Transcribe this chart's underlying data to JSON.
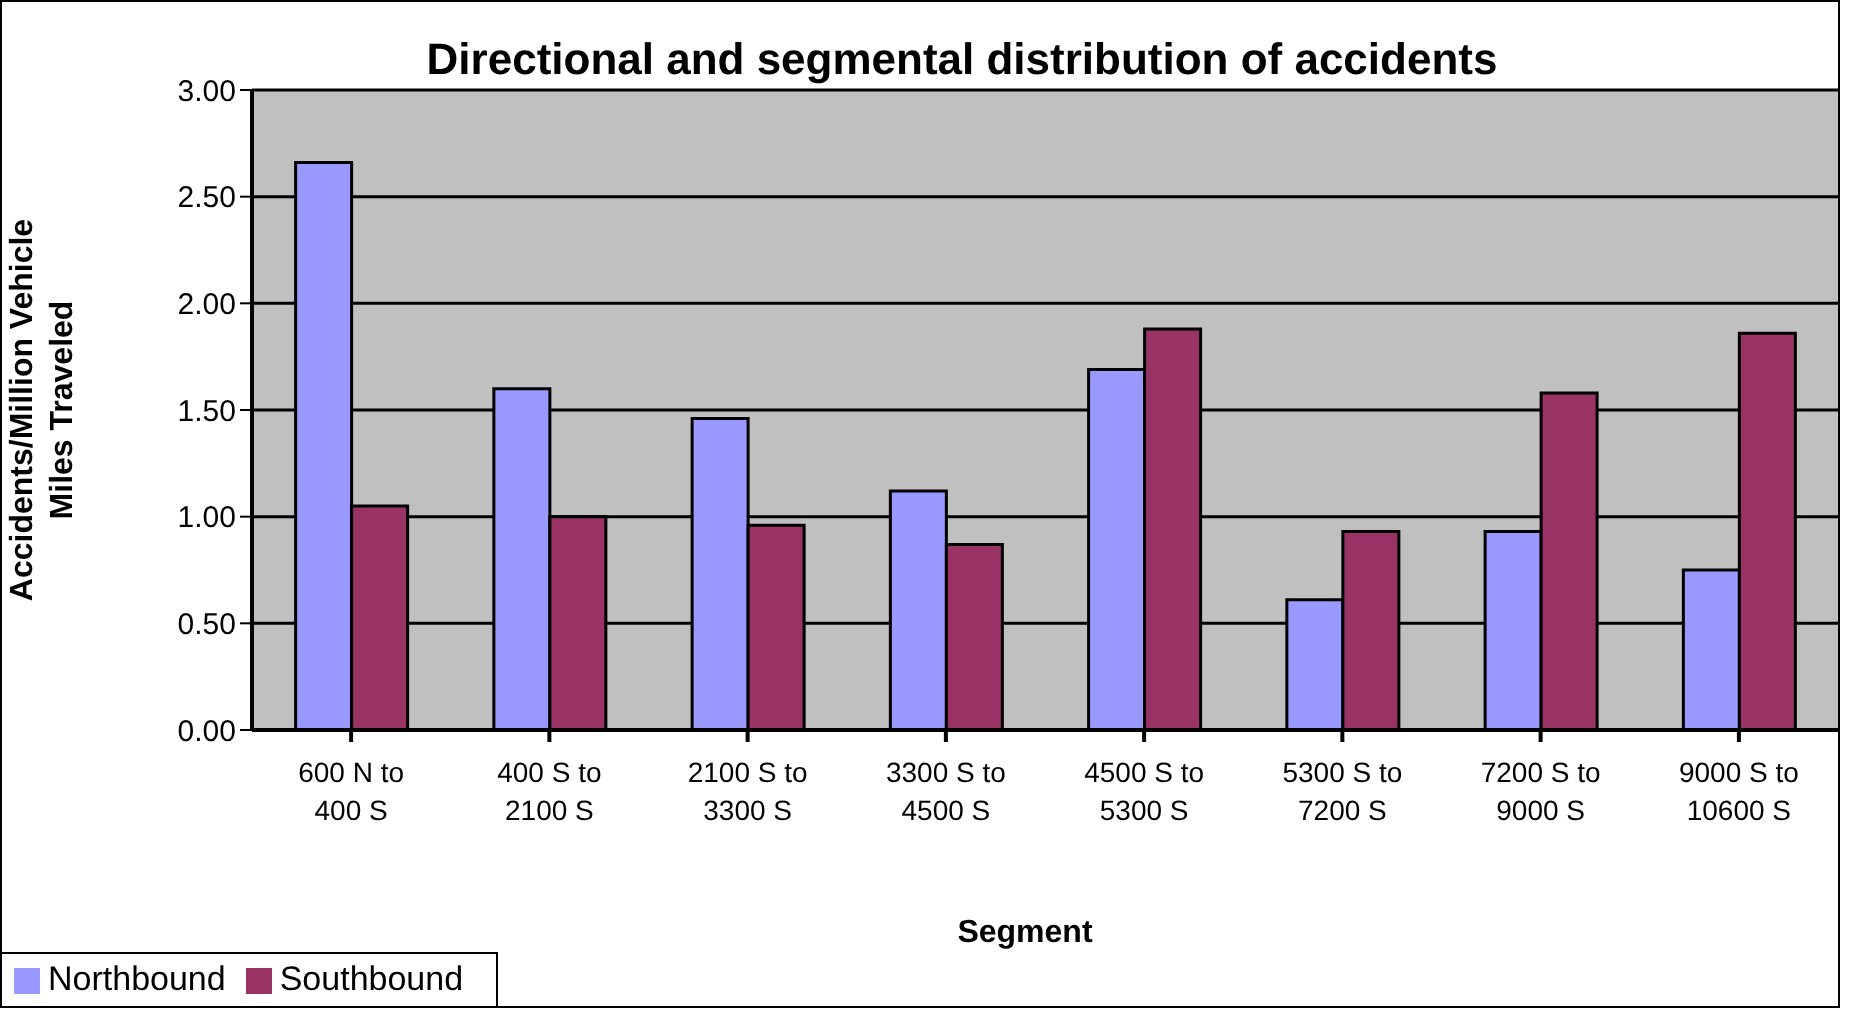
{
  "chart_data": {
    "type": "bar",
    "title": "Directional and segmental distribution of accidents",
    "xlabel": "Segment",
    "ylabel": "Accidents/Million Vehicle Miles Traveled",
    "categories": [
      "600 N to 400 S",
      "400 S to 2100 S",
      "2100 S to 3300 S",
      "3300 S to 4500 S",
      "4500 S to 5300 S",
      "5300 S to 7200 S",
      "7200 S to 9000 S",
      "9000 S to 10600 S"
    ],
    "series": [
      {
        "name": "Northbound",
        "color": "#9999ff",
        "values": [
          2.66,
          1.6,
          1.46,
          1.12,
          1.69,
          0.61,
          0.93,
          0.75
        ]
      },
      {
        "name": "Southbound",
        "color": "#993366",
        "values": [
          1.05,
          1.0,
          0.96,
          0.87,
          1.88,
          0.93,
          1.58,
          1.86
        ]
      }
    ],
    "ylim": [
      0,
      3
    ],
    "yticks": [
      {
        "value": 0,
        "label": "0.00"
      },
      {
        "value": 0.5,
        "label": "0.50"
      },
      {
        "value": 1,
        "label": "1.00"
      },
      {
        "value": 1.5,
        "label": "1.50"
      },
      {
        "value": 2,
        "label": "2.00"
      },
      {
        "value": 2.5,
        "label": "2.50"
      },
      {
        "value": 3,
        "label": "3.00"
      }
    ],
    "grid": "y",
    "legend": "bottom left"
  }
}
